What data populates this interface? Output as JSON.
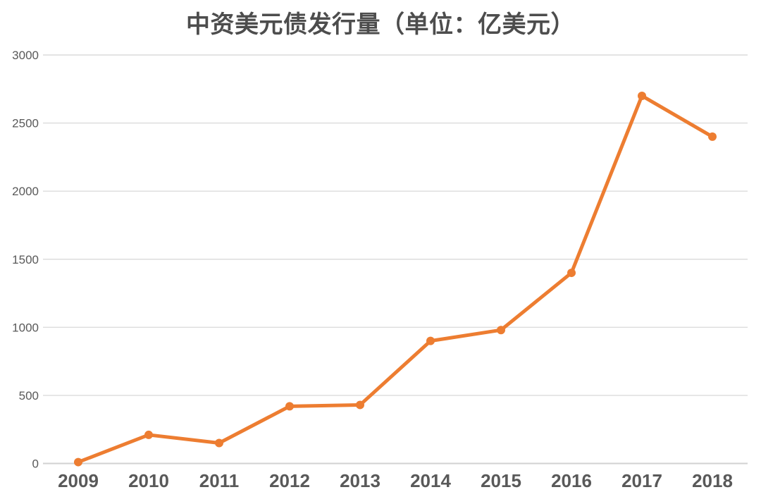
{
  "chart_data": {
    "type": "line",
    "title": "中资美元债发行量（单位：亿美元）",
    "categories": [
      "2009",
      "2010",
      "2011",
      "2012",
      "2013",
      "2014",
      "2015",
      "2016",
      "2017",
      "2018"
    ],
    "values": [
      10,
      210,
      150,
      420,
      430,
      900,
      980,
      1400,
      2700,
      2400
    ],
    "xlabel": "",
    "ylabel": "",
    "ylim": [
      0,
      3000
    ],
    "yticks": [
      0,
      500,
      1000,
      1500,
      2000,
      2500,
      3000
    ],
    "grid": "horizontal",
    "legend_position": "none",
    "colors": {
      "line": "#ED7D31",
      "marker": "#ED7D31",
      "gridline": "#DCDCDC",
      "axis_line": "#D2D2D2",
      "tick_label": "#595959",
      "title": "#4D4D4D",
      "background": "#FFFFFF"
    }
  }
}
